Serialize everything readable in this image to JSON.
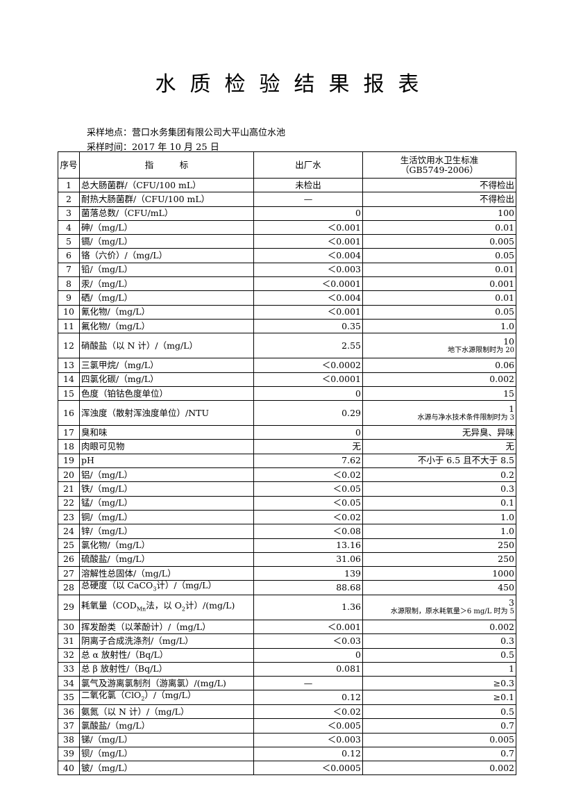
{
  "title": "水质检验结果报表",
  "sampling_location": "采样地点：营口水务集团有限公司大平山高位水池",
  "sampling_time": "采样时间：2017 年 10 月 25 日",
  "headers": {
    "idx": "序号",
    "item": "指　　　标",
    "value": "出厂水",
    "standard": "生活饮用水卫生标准",
    "standard_code": "（GB5749-2006）"
  },
  "rows": [
    {
      "idx": "1",
      "name": [
        "总大肠菌群/（CFU/100 mL）"
      ],
      "value": "未检出",
      "value_align": "center",
      "standard": "不得检出"
    },
    {
      "idx": "2",
      "name": [
        "耐热大肠菌群/（CFU/100 mL）"
      ],
      "value": "—",
      "value_align": "center",
      "standard": "不得检出"
    },
    {
      "idx": "3",
      "name": [
        "菌落总数/（CFU/mL）"
      ],
      "value": "0",
      "standard": "100"
    },
    {
      "idx": "4",
      "name": [
        "砷/（mg/L）"
      ],
      "value": "＜0.001",
      "standard": "0.01"
    },
    {
      "idx": "5",
      "name": [
        "镉/（mg/L）"
      ],
      "value": "＜0.001",
      "standard": "0.005"
    },
    {
      "idx": "6",
      "name": [
        "铬（六价）/（mg/L）"
      ],
      "value": "＜0.004",
      "standard": "0.05"
    },
    {
      "idx": "7",
      "name": [
        "铅/（mg/L）"
      ],
      "value": "＜0.003",
      "standard": "0.01"
    },
    {
      "idx": "8",
      "name": [
        "汞/（mg/L）"
      ],
      "value": "＜0.0001",
      "standard": "0.001"
    },
    {
      "idx": "9",
      "name": [
        "硒/（mg/L）"
      ],
      "value": "＜0.004",
      "standard": "0.01"
    },
    {
      "idx": "10",
      "name": [
        "氰化物/（mg/L）"
      ],
      "value": "＜0.001",
      "standard": "0.05"
    },
    {
      "idx": "11",
      "name": [
        "氟化物/（mg/L）"
      ],
      "value": "0.35",
      "standard": "1.0"
    },
    {
      "idx": "12",
      "name": [
        "硝酸盐（以 N 计）/（mg/L）"
      ],
      "value": "2.55",
      "standard": "10",
      "note": "地下水源限制时为 20"
    },
    {
      "idx": "13",
      "name": [
        "三氯甲烷/（mg/L）"
      ],
      "value": "＜0.0002",
      "standard": "0.06"
    },
    {
      "idx": "14",
      "name": [
        "四氯化碳/（mg/L）"
      ],
      "value": "＜0.0001",
      "standard": "0.002"
    },
    {
      "idx": "15",
      "name": [
        "色度（铂钴色度单位）"
      ],
      "value": "0",
      "standard": "15"
    },
    {
      "idx": "16",
      "name": [
        "浑浊度（散射浑浊度单位）/NTU"
      ],
      "value": "0.29",
      "standard": "1",
      "note": "水源与净水技术条件限制时为 3"
    },
    {
      "idx": "17",
      "name": [
        "臭和味"
      ],
      "value": "0",
      "standard": "无异臭、异味"
    },
    {
      "idx": "18",
      "name": [
        "肉眼可见物"
      ],
      "value": "无",
      "standard": "无"
    },
    {
      "idx": "19",
      "name": [
        "pH"
      ],
      "value": "7.62",
      "standard": "不小于 6.5 且不大于 8.5"
    },
    {
      "idx": "20",
      "name": [
        "铝/（mg/L）"
      ],
      "value": "＜0.02",
      "standard": "0.2"
    },
    {
      "idx": "21",
      "name": [
        "铁/（mg/L）"
      ],
      "value": "＜0.05",
      "standard": "0.3"
    },
    {
      "idx": "22",
      "name": [
        "锰/（mg/L）"
      ],
      "value": "＜0.05",
      "standard": "0.1"
    },
    {
      "idx": "23",
      "name": [
        "铜/（mg/L）"
      ],
      "value": "＜0.02",
      "standard": "1.0"
    },
    {
      "idx": "24",
      "name": [
        "锌/（mg/L）"
      ],
      "value": "＜0.08",
      "standard": "1.0"
    },
    {
      "idx": "25",
      "name": [
        "氯化物/（mg/L）"
      ],
      "value": "13.16",
      "standard": "250"
    },
    {
      "idx": "26",
      "name": [
        "硫酸盐/（mg/L）"
      ],
      "value": "31.06",
      "standard": "250"
    },
    {
      "idx": "27",
      "name": [
        "溶解性总固体/（mg/L）"
      ],
      "value": "139",
      "standard": "1000"
    },
    {
      "idx": "28",
      "name": [
        "总硬度（以 CaCO",
        "3",
        "计）/（mg/L）"
      ],
      "value": "88.68",
      "standard": "450"
    },
    {
      "idx": "29",
      "name": [
        "耗氧量（COD",
        "Mn",
        "法，以 O",
        "2",
        "计）/(mg/L)"
      ],
      "value": "1.36",
      "standard": "3",
      "note": "水源限制，原水耗氧量＞6 mg/L 时为 5"
    },
    {
      "idx": "30",
      "name": [
        "挥发酚类（以苯酚计）/（mg/L）"
      ],
      "value": "＜0.001",
      "standard": "0.002"
    },
    {
      "idx": "31",
      "name": [
        "阴离子合成洗涤剂/（mg/L）"
      ],
      "value": "＜0.03",
      "standard": "0.3"
    },
    {
      "idx": "32",
      "name": [
        "总 α 放射性/（Bq/L）"
      ],
      "value": "0",
      "standard": "0.5"
    },
    {
      "idx": "33",
      "name": [
        "总 β 放射性/（Bq/L）"
      ],
      "value": "0.081",
      "standard": "1"
    },
    {
      "idx": "34",
      "name": [
        "氯气及游离氯制剂（游离氯）/(mg/L)"
      ],
      "value": "—",
      "value_align": "center",
      "standard": "≥0.3"
    },
    {
      "idx": "35",
      "name": [
        "二氧化氯（ClO",
        "2",
        "）/（mg/L）"
      ],
      "value": "0.12",
      "standard": "≥0.1"
    },
    {
      "idx": "36",
      "name": [
        "氨氮（以 N 计）/（mg/L）"
      ],
      "value": "＜0.02",
      "standard": "0.5"
    },
    {
      "idx": "37",
      "name": [
        "氯酸盐/（mg/L）"
      ],
      "value": "＜0.005",
      "standard": "0.7"
    },
    {
      "idx": "38",
      "name": [
        "锑/（mg/L）"
      ],
      "value": "＜0.003",
      "standard": "0.005"
    },
    {
      "idx": "39",
      "name": [
        "钡/（mg/L）"
      ],
      "value": "0.12",
      "standard": "0.7"
    },
    {
      "idx": "40",
      "name": [
        "铍/（mg/L）"
      ],
      "value": "＜0.0005",
      "standard": "0.002"
    }
  ]
}
